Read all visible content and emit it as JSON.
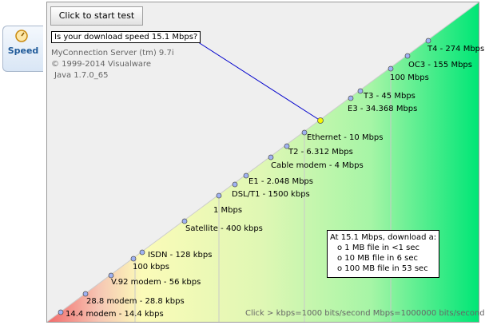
{
  "tab": {
    "label": "Speed",
    "icon": "gauge-icon"
  },
  "button": {
    "label": "Click to start test"
  },
  "question": "Is your download speed 15.1 Mbps?",
  "server_info": [
    "MyConnection Server (tm) 9.7i",
    "© 1999-2014 Visualware",
    "Java 1.7.0_65"
  ],
  "speed_labels": [
    "T4 - 274 Mbps",
    "OC3 - 155 Mbps",
    "100 Mbps",
    "T3 - 45 Mbps",
    "E3 - 34.368 Mbps",
    "Ethernet - 10 Mbps",
    "T2 - 6.312 Mbps",
    "Cable modem - 4 Mbps",
    "E1 - 2.048 Mbps",
    "DSL/T1 - 1500 kbps",
    "1 Mbps",
    "Satellite - 400 kbps",
    "ISDN - 128 kbps",
    "100 kbps",
    "V.92 modem - 56 kbps",
    "28.8 modem - 28.8 kbps",
    "14.4 modem - 14.4 kbps"
  ],
  "download_box": {
    "title": "At 15.1 Mbps, download a:",
    "items": [
      "o 1 MB file in <1 sec",
      "o 10 MB file in 6 sec",
      "o 100 MB file in 53 sec"
    ]
  },
  "footer": "Click > kbps=1000 bits/second  Mbps=1000000 bits/second",
  "colors": {
    "red": "#f26b6b",
    "yellow": "#fbfbb8",
    "green": "#00e676",
    "marker": "#9fb2f3",
    "selected": "#f7f700",
    "pointer_line": "#0000cc"
  }
}
